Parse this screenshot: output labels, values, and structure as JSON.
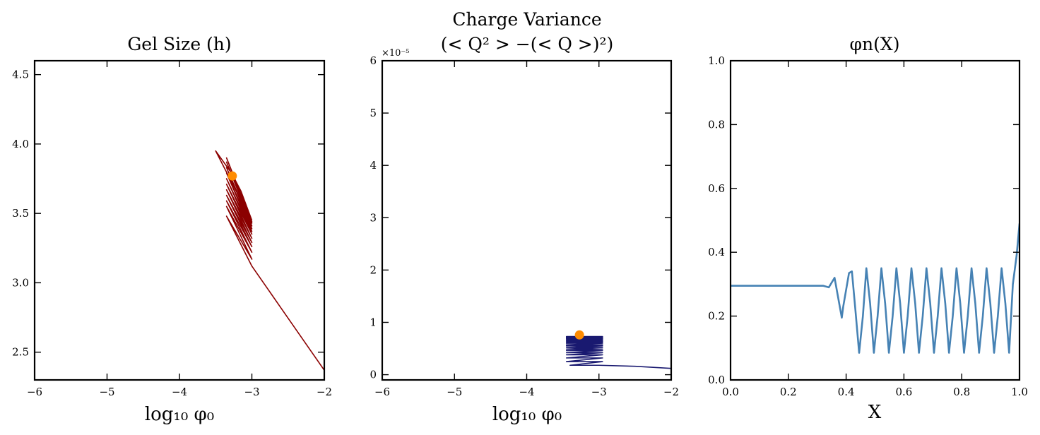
{
  "chart_data": [
    {
      "type": "line",
      "title": "Gel Size (h)",
      "xlabel": "log₁₀ φ₀",
      "ylabel": "",
      "xlim": [
        -6,
        -2
      ],
      "ylim": [
        2.3,
        4.6
      ],
      "xticks": [
        -6,
        -5,
        -4,
        -3,
        -2
      ],
      "xtick_labels": [
        "−6",
        "−5",
        "−4",
        "−3",
        "−2"
      ],
      "yticks": [
        2.5,
        3.0,
        3.5,
        4.0,
        4.5
      ],
      "ytick_labels": [
        "2.5",
        "3.0",
        "3.5",
        "4.0",
        "4.5"
      ],
      "line_color": "#8b0000",
      "marker_color": "#ff8c00",
      "series": [
        {
          "x": [
            -2.0,
            -2.2,
            -2.4,
            -2.6,
            -2.8,
            -3.0,
            -3.35,
            -3.0,
            -3.35,
            -3.0,
            -3.35,
            -3.0,
            -3.35,
            -3.0,
            -3.35,
            -3.0,
            -3.35,
            -3.0,
            -3.35,
            -3.0,
            -3.35,
            -3.0,
            -3.35,
            -3.0,
            -3.35,
            -3.0,
            -3.35,
            -3.0,
            -3.5,
            -3.28,
            -3.15,
            -3.0
          ],
          "y": [
            2.37,
            2.52,
            2.67,
            2.82,
            2.97,
            3.12,
            3.48,
            3.17,
            3.55,
            3.22,
            3.59,
            3.26,
            3.63,
            3.29,
            3.67,
            3.32,
            3.71,
            3.35,
            3.75,
            3.37,
            3.79,
            3.39,
            3.83,
            3.41,
            3.87,
            3.43,
            3.9,
            3.44,
            3.95,
            3.79,
            3.66,
            3.45
          ]
        }
      ],
      "marker": {
        "x": -3.27,
        "y": 3.77
      }
    },
    {
      "type": "line",
      "title": "Charge Variance",
      "subtitle": "(< Q² > −(< Q >)²)",
      "offset_text": "×10⁻⁵",
      "xlabel": "log₁₀ φ₀",
      "ylabel": "",
      "xlim": [
        -6,
        -2
      ],
      "ylim": [
        -0.1,
        6
      ],
      "xticks": [
        -6,
        -5,
        -4,
        -3,
        -2
      ],
      "xtick_labels": [
        "−6",
        "−5",
        "−4",
        "−3",
        "−2"
      ],
      "yticks": [
        0,
        1,
        2,
        3,
        4,
        5,
        6
      ],
      "ytick_labels": [
        "0",
        "1",
        "2",
        "3",
        "4",
        "5",
        "6"
      ],
      "line_color": "#191970",
      "marker_color": "#ff8c00",
      "series": [
        {
          "x": [
            -2.0,
            -2.5,
            -3.0,
            -3.4,
            -2.95,
            -3.45,
            -2.95,
            -3.45,
            -2.95,
            -3.45,
            -2.95,
            -3.45,
            -2.95,
            -3.45,
            -2.95,
            -3.45,
            -2.95,
            -3.45,
            -2.95,
            -3.45,
            -2.95,
            -3.45,
            -2.95,
            -3.45,
            -2.95,
            -3.45,
            -2.95,
            -3.45,
            -2.95,
            -3.45,
            -2.95,
            -3.45,
            -2.95,
            -3.45,
            -2.95,
            -3.45,
            -2.95,
            -3.45,
            -2.95,
            -3.45,
            -2.95,
            -3.45,
            -2.95
          ],
          "y": [
            0.12,
            0.16,
            0.18,
            0.18,
            0.25,
            0.25,
            0.32,
            0.32,
            0.38,
            0.38,
            0.42,
            0.42,
            0.46,
            0.46,
            0.49,
            0.49,
            0.52,
            0.52,
            0.55,
            0.55,
            0.57,
            0.57,
            0.6,
            0.6,
            0.62,
            0.62,
            0.64,
            0.64,
            0.66,
            0.66,
            0.67,
            0.67,
            0.69,
            0.69,
            0.7,
            0.7,
            0.71,
            0.71,
            0.72,
            0.72,
            0.73,
            0.73,
            0.73
          ]
        }
      ],
      "marker": {
        "x": -3.27,
        "y": 0.76
      }
    },
    {
      "type": "line",
      "title": "φn(X)",
      "xlabel": "X",
      "ylabel": "",
      "xlim": [
        0,
        1
      ],
      "ylim": [
        0,
        1
      ],
      "xticks": [
        0,
        0.2,
        0.4,
        0.6,
        0.8,
        1.0
      ],
      "xtick_labels": [
        "0.0",
        "0.2",
        "0.4",
        "0.6",
        "0.8",
        "1.0"
      ],
      "yticks": [
        0,
        0.2,
        0.4,
        0.6,
        0.8,
        1.0
      ],
      "ytick_labels": [
        "0.0",
        "0.2",
        "0.4",
        "0.6",
        "0.8",
        "1.0"
      ],
      "line_color": "#4682b4",
      "series": [
        {
          "x": [
            0.0,
            0.32,
            0.34,
            0.36,
            0.37,
            0.385,
            0.39,
            0.41,
            0.42,
            0.432,
            0.445,
            0.458,
            0.47,
            0.483,
            0.496,
            0.509,
            0.522,
            0.535,
            0.548,
            0.561,
            0.574,
            0.587,
            0.6,
            0.613,
            0.626,
            0.639,
            0.652,
            0.665,
            0.678,
            0.691,
            0.704,
            0.717,
            0.73,
            0.743,
            0.756,
            0.769,
            0.782,
            0.795,
            0.808,
            0.821,
            0.834,
            0.847,
            0.86,
            0.873,
            0.886,
            0.899,
            0.912,
            0.925,
            0.938,
            0.951,
            0.964,
            0.977,
            0.99,
            1.0
          ],
          "y": [
            0.295,
            0.295,
            0.29,
            0.32,
            0.27,
            0.195,
            0.23,
            0.335,
            0.34,
            0.22,
            0.085,
            0.2,
            0.35,
            0.24,
            0.085,
            0.2,
            0.35,
            0.24,
            0.085,
            0.2,
            0.35,
            0.24,
            0.085,
            0.2,
            0.35,
            0.24,
            0.085,
            0.2,
            0.35,
            0.24,
            0.085,
            0.2,
            0.35,
            0.24,
            0.085,
            0.2,
            0.35,
            0.24,
            0.085,
            0.2,
            0.35,
            0.24,
            0.085,
            0.2,
            0.35,
            0.24,
            0.085,
            0.2,
            0.35,
            0.24,
            0.085,
            0.3,
            0.39,
            0.49
          ]
        }
      ]
    }
  ]
}
